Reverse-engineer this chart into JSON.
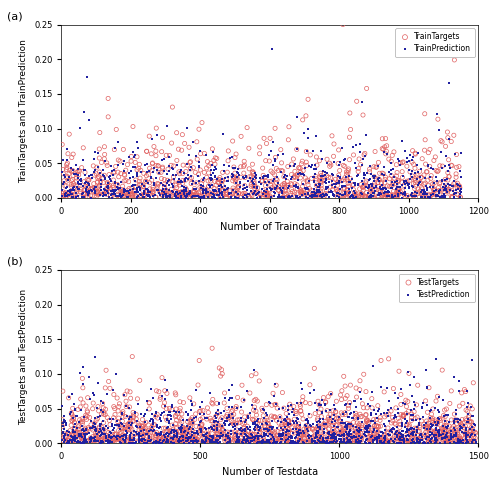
{
  "train_n": 1050,
  "test_n": 1500,
  "train_xlim": [
    0,
    1200
  ],
  "test_xlim": [
    0,
    1500
  ],
  "ylim": [
    0,
    0.25
  ],
  "yticks": [
    0,
    0.05,
    0.1,
    0.15,
    0.2,
    0.25
  ],
  "train_xticks": [
    0,
    200,
    400,
    600,
    800,
    1000,
    1200
  ],
  "test_xticks": [
    0,
    500,
    1000,
    1500
  ],
  "train_xlabel": "Number of Traindata",
  "test_xlabel": "Number of Testdata",
  "train_ylabel": "TrainTargets and TrainPrediction",
  "test_ylabel": "TestTargets and TestPrediction",
  "train_target_label": "TrainTargets",
  "train_pred_label": "TrainPrediction",
  "test_target_label": "TestTargets",
  "test_pred_label": "TestPrediction",
  "target_color": "#e06060",
  "pred_color": "#2020a0",
  "panel_a_label": "(a)",
  "panel_b_label": "(b)",
  "background_color": "#ffffff",
  "marker_target": "o",
  "marker_pred": "s",
  "markersize_target": 9,
  "markersize_pred": 3,
  "lw_target": 0.5
}
